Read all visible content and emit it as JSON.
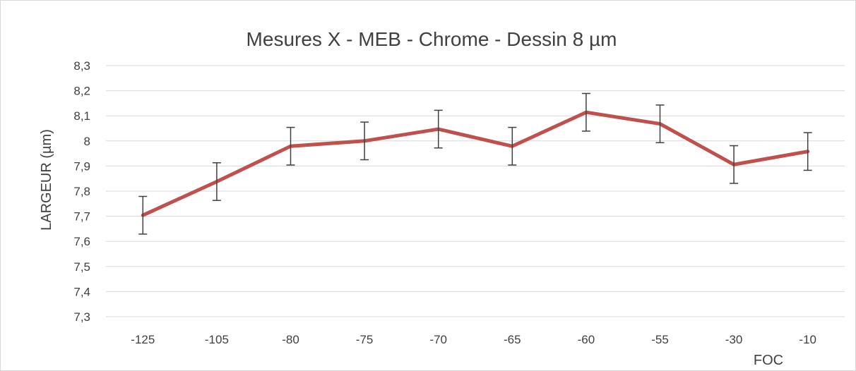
{
  "chart_data": {
    "type": "line",
    "title": "Mesures X - MEB - Chrome - Dessin 8 µm",
    "xlabel": "FOC",
    "ylabel": "LARGEUR (µm)",
    "categories": [
      "-125",
      "-105",
      "-80",
      "-75",
      "-70",
      "-65",
      "-60",
      "-55",
      "-30",
      "-10"
    ],
    "series": [
      {
        "values": [
          7.704,
          7.838,
          7.979,
          8.0,
          8.047,
          7.979,
          8.114,
          8.068,
          7.906,
          7.958
        ],
        "error": 0.075,
        "color": "#c0504d"
      }
    ],
    "y_ticks": [
      "8,3",
      "8,2",
      "8,1",
      "8",
      "7,9",
      "7,8",
      "7,7",
      "7,6",
      "7,5",
      "7,4",
      "7,3"
    ],
    "ylim": [
      7.3,
      8.3
    ],
    "grid": true,
    "legend": "none",
    "colors": {
      "gridline": "#d9d9d9",
      "errorbar": "#404040",
      "text": "#404040",
      "frame": "#d9d9d9"
    }
  }
}
